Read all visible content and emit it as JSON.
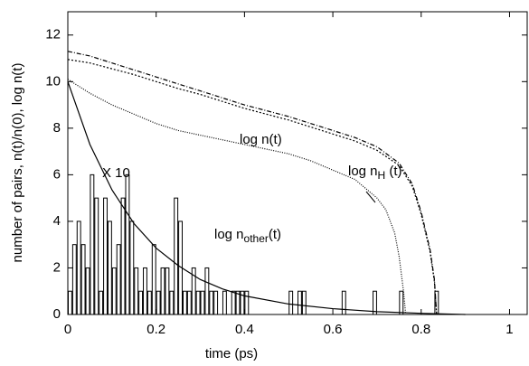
{
  "chart_data": {
    "type": "histogram-lines",
    "xlabel": "time (ps)",
    "ylabel": "number of pairs, n(t)/n(0), log n(t)",
    "xlim": [
      0,
      1.04
    ],
    "ylim": [
      0,
      13
    ],
    "xticks": [
      0,
      0.2,
      0.4,
      0.6,
      0.8,
      1
    ],
    "yticks": [
      0,
      2,
      4,
      6,
      8,
      10,
      12
    ],
    "bins": [
      0,
      0.01,
      0.02,
      0.03,
      0.04,
      0.05,
      0.06,
      0.07,
      0.08,
      0.09,
      0.1,
      0.11,
      0.12,
      0.13,
      0.14,
      0.15,
      0.16,
      0.17,
      0.18,
      0.19,
      0.2,
      0.21,
      0.22,
      0.23,
      0.24,
      0.25,
      0.26,
      0.27,
      0.28,
      0.29,
      0.3,
      0.31,
      0.32,
      0.33,
      0.34,
      0.35,
      0.36,
      0.37,
      0.38,
      0.39,
      0.4,
      0.41,
      0.42,
      0.43,
      0.44,
      0.45,
      0.46,
      0.47,
      0.48,
      0.49,
      0.5,
      0.51,
      0.52,
      0.53,
      0.54,
      0.55,
      0.56,
      0.57,
      0.58,
      0.59,
      0.6,
      0.61,
      0.62,
      0.63,
      0.64,
      0.65,
      0.66,
      0.67,
      0.68,
      0.69,
      0.7,
      0.71,
      0.72,
      0.73,
      0.74,
      0.75,
      0.76,
      0.77,
      0.78,
      0.79,
      0.8,
      0.81,
      0.82,
      0.83,
      0.84,
      0.85
    ],
    "counts": [
      1,
      3,
      4,
      3,
      2,
      6,
      5,
      1,
      5,
      4,
      2,
      3,
      5,
      6,
      4,
      2,
      1,
      2,
      1,
      3,
      1,
      2,
      2,
      1,
      5,
      4,
      1,
      1,
      2,
      1,
      1,
      2,
      1,
      1,
      0,
      1,
      0,
      1,
      1,
      1,
      1,
      0,
      0,
      0,
      0,
      0,
      0,
      0,
      0,
      0,
      1,
      0,
      1,
      1,
      0,
      0,
      0,
      0,
      0,
      0,
      0,
      0,
      1,
      0,
      0,
      0,
      0,
      0,
      0,
      1,
      0,
      0,
      0,
      0,
      0,
      1,
      0,
      0,
      0,
      0,
      0,
      0,
      0,
      1,
      0
    ],
    "bar_color": "#000000",
    "series": [
      {
        "name": "log n(t)",
        "color": "#000000",
        "dash": "5 2 1 2",
        "x": [
          0,
          0.05,
          0.1,
          0.15,
          0.2,
          0.25,
          0.3,
          0.35,
          0.4,
          0.45,
          0.5,
          0.55,
          0.6,
          0.65,
          0.7,
          0.75,
          0.78,
          0.8,
          0.82,
          0.83,
          0.835
        ],
        "values": [
          11.3,
          11.1,
          10.8,
          10.5,
          10.2,
          9.9,
          9.6,
          9.3,
          9.0,
          8.75,
          8.5,
          8.2,
          7.9,
          7.6,
          7.2,
          6.5,
          5.6,
          4.4,
          2.8,
          1.5,
          0
        ]
      },
      {
        "name": "log n_H (t)",
        "color": "#000000",
        "dash": "2 2",
        "x": [
          0,
          0.05,
          0.1,
          0.15,
          0.2,
          0.25,
          0.3,
          0.35,
          0.4,
          0.45,
          0.5,
          0.55,
          0.6,
          0.65,
          0.7,
          0.75,
          0.78,
          0.8,
          0.82,
          0.83,
          0.835
        ],
        "values": [
          10.95,
          10.8,
          10.55,
          10.3,
          10.0,
          9.7,
          9.45,
          9.15,
          8.85,
          8.6,
          8.35,
          8.05,
          7.75,
          7.45,
          7.05,
          6.4,
          5.5,
          4.3,
          2.7,
          1.4,
          0
        ]
      },
      {
        "name": "log n_other(t)",
        "color": "#000000",
        "dash": "1 1.5",
        "x": [
          0,
          0.05,
          0.1,
          0.15,
          0.2,
          0.25,
          0.3,
          0.35,
          0.4,
          0.45,
          0.5,
          0.55,
          0.6,
          0.65,
          0.7,
          0.72,
          0.74,
          0.75,
          0.76,
          0.765
        ],
        "values": [
          10.1,
          9.5,
          9.0,
          8.6,
          8.2,
          7.9,
          7.7,
          7.5,
          7.3,
          7.1,
          6.9,
          6.6,
          6.2,
          5.8,
          5.0,
          4.5,
          3.5,
          2.5,
          1.0,
          0
        ]
      },
      {
        "name": "X 10",
        "color": "#000000",
        "dash": "none",
        "x": [
          0,
          0.05,
          0.1,
          0.15,
          0.2,
          0.25,
          0.3,
          0.35,
          0.4,
          0.5,
          0.6,
          0.7,
          0.8,
          0.9
        ],
        "values": [
          10,
          7.3,
          5.35,
          3.9,
          2.85,
          2.1,
          1.5,
          1.1,
          0.8,
          0.45,
          0.25,
          0.12,
          0.05,
          0
        ]
      }
    ],
    "annotations": [
      {
        "text": "log n(t)"
      },
      {
        "text": "log n",
        "sub": "H",
        "after": " (t)"
      },
      {
        "text": "log n",
        "sub": "other",
        "after": "(t)"
      },
      {
        "text": "X 10"
      }
    ]
  }
}
